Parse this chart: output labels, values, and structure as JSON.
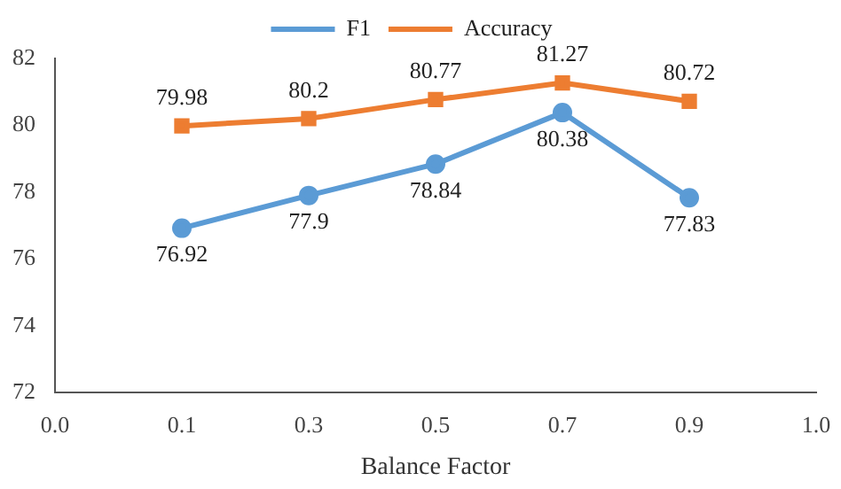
{
  "chart_data": {
    "type": "line",
    "xlabel": "Balance Factor",
    "categories": [
      "0.0",
      "0.1",
      "0.3",
      "0.5",
      "0.7",
      "0.9",
      "1.0"
    ],
    "series": [
      {
        "name": "F1",
        "color": "#5b9bd5",
        "marker": "circle",
        "values": [
          null,
          76.92,
          77.9,
          78.84,
          80.38,
          77.83,
          null
        ]
      },
      {
        "name": "Accuracy",
        "color": "#ed7d31",
        "marker": "square",
        "values": [
          null,
          79.98,
          80.2,
          80.77,
          81.27,
          80.72,
          null
        ]
      }
    ],
    "ylim": [
      72,
      82
    ],
    "yticks": [
      72,
      74,
      76,
      78,
      80,
      82
    ],
    "grid": false,
    "legend": "top",
    "data_labels": true,
    "line_style": "solid"
  }
}
